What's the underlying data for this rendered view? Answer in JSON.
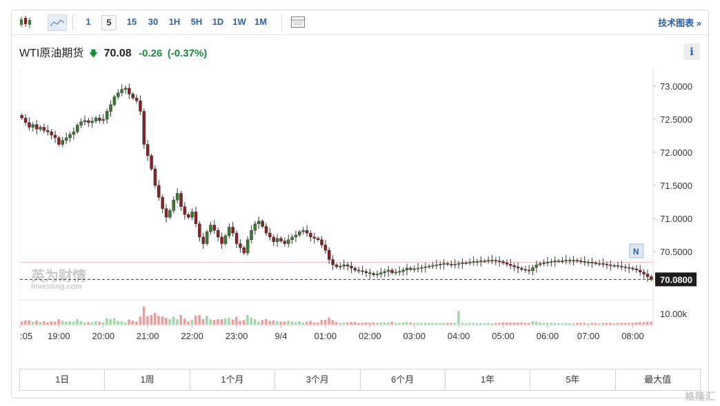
{
  "toolbar": {
    "icons": [
      "candlestick-icon",
      "area-chart-icon",
      "table-icon"
    ],
    "timeframes": [
      "1",
      "5",
      "15",
      "30",
      "1H",
      "5H",
      "1D",
      "1W",
      "1M"
    ],
    "active_timeframe": "5",
    "tech_chart_label": "技术图表 »"
  },
  "quote": {
    "name": "WTI原油期货",
    "direction": "down",
    "price": "70.08",
    "change": "-0.26",
    "change_pct": "(-0.37%)"
  },
  "info_label": "i",
  "watermark": {
    "brand": "英为财情",
    "sub": "Investing.com"
  },
  "news_marker": "N",
  "corner_mark": "格隆汇",
  "ranges": [
    "1日",
    "1周",
    "1个月",
    "3个月",
    "6个月",
    "1年",
    "5年",
    "最大值"
  ],
  "colors": {
    "up": "#3b7d2e",
    "down": "#8e1f21",
    "vol_up": "#9fd6a8",
    "vol_down": "#ee9a9a",
    "prev_close_line": "#f0b8b0"
  },
  "chart_data": {
    "type": "candlestick",
    "y_ticks": [
      "73.0000",
      "72.5000",
      "72.0000",
      "71.5000",
      "71.0000",
      "70.5000"
    ],
    "ylim": [
      69.75,
      73.25
    ],
    "x_ticks": [
      ":05",
      "19:00",
      "20:00",
      "21:00",
      "22:00",
      "23:00",
      "9/4",
      "01:00",
      "02:00",
      "03:00",
      "04:00",
      "05:00",
      "06:00",
      "07:00",
      "08:00"
    ],
    "x_tick_index": [
      0,
      10,
      22,
      34,
      46,
      58,
      70,
      82,
      94,
      106,
      118,
      130,
      142,
      153,
      165
    ],
    "last_price_label": "70.0800",
    "last_price": 70.08,
    "prev_close": 70.34,
    "volume_axis_label": "10.00k",
    "closes": [
      72.52,
      72.45,
      72.38,
      72.42,
      72.35,
      72.38,
      72.33,
      72.31,
      72.26,
      72.22,
      72.12,
      72.18,
      72.22,
      72.27,
      72.31,
      72.41,
      72.46,
      72.48,
      72.45,
      72.47,
      72.52,
      72.48,
      72.5,
      72.62,
      72.72,
      72.84,
      72.9,
      72.95,
      72.97,
      72.88,
      72.82,
      72.78,
      72.62,
      72.12,
      71.95,
      71.75,
      71.5,
      71.32,
      71.15,
      71.02,
      71.12,
      71.28,
      71.38,
      71.18,
      71.06,
      71.02,
      71.1,
      70.92,
      70.72,
      70.62,
      70.8,
      70.9,
      70.82,
      70.72,
      70.62,
      70.74,
      70.87,
      70.78,
      70.62,
      70.56,
      70.48,
      70.68,
      70.82,
      70.92,
      70.96,
      70.88,
      70.78,
      70.72,
      70.65,
      70.7,
      70.66,
      70.62,
      70.68,
      70.72,
      70.75,
      70.8,
      70.82,
      70.78,
      70.72,
      70.7,
      70.68,
      70.6,
      70.52,
      70.38,
      70.3,
      70.27,
      70.28,
      70.3,
      70.28,
      70.25,
      70.22,
      70.21,
      70.2,
      70.18,
      70.17,
      70.15,
      70.16,
      70.18,
      70.2,
      70.22,
      70.18,
      70.19,
      70.2,
      70.22,
      70.25,
      70.23,
      70.24,
      70.25,
      70.26,
      70.27,
      70.28,
      70.29,
      70.3,
      70.31,
      70.32,
      70.31,
      70.3,
      70.31,
      70.32,
      70.33,
      70.33,
      70.34,
      70.35,
      70.35,
      70.36,
      70.36,
      70.37,
      70.37,
      70.36,
      70.35,
      70.33,
      70.31,
      70.29,
      70.27,
      70.25,
      70.23,
      70.22,
      70.21,
      70.26,
      70.3,
      70.32,
      70.33,
      70.34,
      70.35,
      70.36,
      70.36,
      70.36,
      70.37,
      70.37,
      70.37,
      70.36,
      70.35,
      70.34,
      70.34,
      70.33,
      70.32,
      70.32,
      70.31,
      70.3,
      70.29,
      70.29,
      70.28,
      70.27,
      70.26,
      70.25,
      70.24,
      70.22,
      70.19,
      70.16,
      70.12,
      70.08
    ]
  }
}
